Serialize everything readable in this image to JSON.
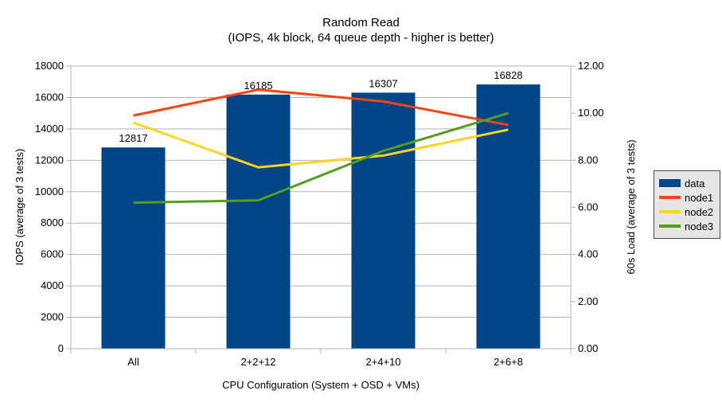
{
  "chart_data": {
    "type": "bar+line combo",
    "title": "Random Read",
    "subtitle": "(IOPS, 4k block, 64 queue depth - higher is better)",
    "xlabel": "CPU Configuration (System + OSD + VMs)",
    "categories": [
      "All",
      "2+2+12",
      "2+4+10",
      "2+6+8"
    ],
    "left_axis": {
      "label": "IOPS (average of 3 tests)",
      "min": 0,
      "max": 18000,
      "step": 2000,
      "tick_labels": [
        "0",
        "2000",
        "4000",
        "6000",
        "8000",
        "10000",
        "12000",
        "14000",
        "16000",
        "18000"
      ]
    },
    "right_axis": {
      "label": "60s Load (average of 3 tests)",
      "min": 0,
      "max": 12,
      "step": 2,
      "decimals": 2,
      "tick_labels": [
        "0.00",
        "2.00",
        "4.00",
        "6.00",
        "8.00",
        "10.00",
        "12.00"
      ]
    },
    "bar_series": {
      "name": "data",
      "color": "#004586",
      "axis": "left",
      "values": [
        12817,
        16185,
        16307,
        16828
      ],
      "data_labels": [
        "12817",
        "16185",
        "16307",
        "16828"
      ]
    },
    "line_series": [
      {
        "name": "node1",
        "color": "#ff420e",
        "axis": "right",
        "values": [
          9.9,
          11.0,
          10.5,
          9.5
        ]
      },
      {
        "name": "node2",
        "color": "#ffd320",
        "axis": "right",
        "values": [
          9.6,
          7.7,
          8.2,
          9.3
        ]
      },
      {
        "name": "node3",
        "color": "#579d1c",
        "axis": "right",
        "values": [
          6.2,
          6.3,
          8.4,
          10.0
        ]
      }
    ],
    "legend": {
      "position": "right",
      "entries": [
        "data",
        "node1",
        "node2",
        "node3"
      ]
    },
    "grid": true,
    "colors": {
      "background": "#ffffff",
      "grid": "#b3b3b3",
      "axis": "#b3b3b3",
      "text": "#000000",
      "legend_bg": "#e6e6e6",
      "legend_border": "#4d4d4d"
    }
  }
}
